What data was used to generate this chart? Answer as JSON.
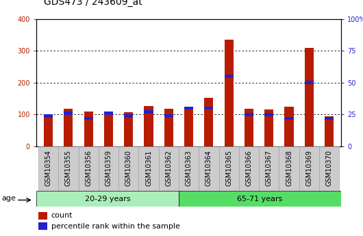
{
  "title": "GDS473 / 243609_at",
  "categories": [
    "GSM10354",
    "GSM10355",
    "GSM10356",
    "GSM10359",
    "GSM10360",
    "GSM10361",
    "GSM10362",
    "GSM10363",
    "GSM10364",
    "GSM10365",
    "GSM10366",
    "GSM10367",
    "GSM10368",
    "GSM10369",
    "GSM10370"
  ],
  "counts": [
    97,
    117,
    110,
    100,
    108,
    127,
    117,
    125,
    152,
    335,
    118,
    115,
    125,
    310,
    95
  ],
  "percentiles": [
    24,
    26,
    22,
    26,
    24,
    27,
    24,
    30,
    30,
    55,
    25,
    25,
    22,
    50,
    22
  ],
  "ylim_left": [
    0,
    400
  ],
  "ylim_right": [
    0,
    100
  ],
  "yticks_left": [
    0,
    100,
    200,
    300,
    400
  ],
  "yticks_right": [
    0,
    25,
    50,
    75,
    100
  ],
  "group1_label": "20-29 years",
  "group2_label": "65-71 years",
  "group1_count": 7,
  "age_label": "age",
  "bar_color_count": "#b81c00",
  "bar_color_pct": "#2222cc",
  "bar_width": 0.45,
  "grid_color": "#000000",
  "bg_color_plot": "#ffffff",
  "bg_color_xtick": "#cccccc",
  "group1_bg": "#aaeebb",
  "group2_bg": "#55dd66",
  "legend_count": "count",
  "legend_pct": "percentile rank within the sample",
  "title_fontsize": 10,
  "tick_fontsize": 7,
  "label_fontsize": 8
}
